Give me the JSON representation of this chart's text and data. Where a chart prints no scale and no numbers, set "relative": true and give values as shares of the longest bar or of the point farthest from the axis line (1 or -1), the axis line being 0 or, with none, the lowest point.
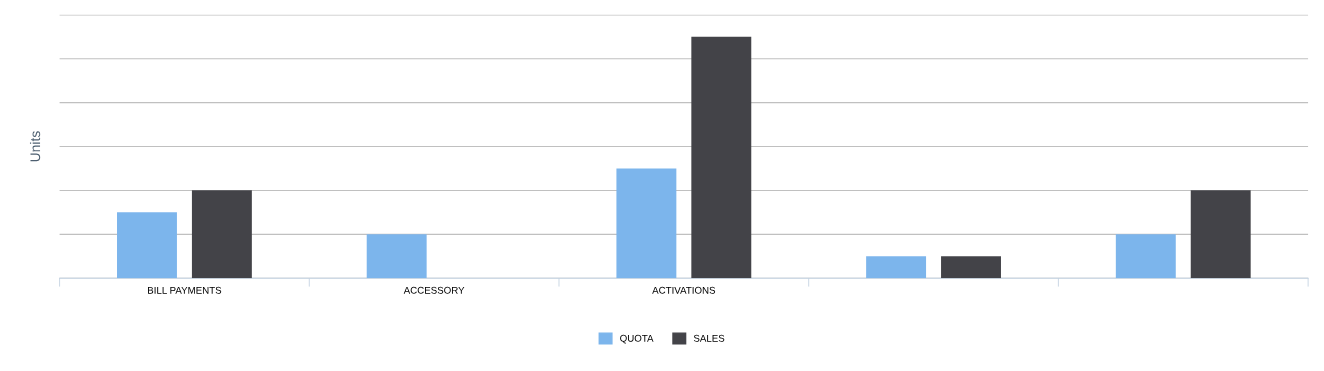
{
  "chart_data": {
    "type": "bar",
    "ylabel": "Units",
    "relative": true,
    "categories": [
      "BILL PAYMENTS",
      "ACCESSORY",
      "ACTIVATIONS",
      null,
      null
    ],
    "series": [
      {
        "name": "QUOTA",
        "color": "#7cb5ec",
        "values": [
          0.273,
          0.182,
          0.455,
          0.091,
          0.182
        ]
      },
      {
        "name": "SALES",
        "color": "#434348",
        "values": [
          0.364,
          0,
          1,
          0.091,
          0.364
        ]
      }
    ],
    "grid": "y",
    "legend": "bottom"
  }
}
